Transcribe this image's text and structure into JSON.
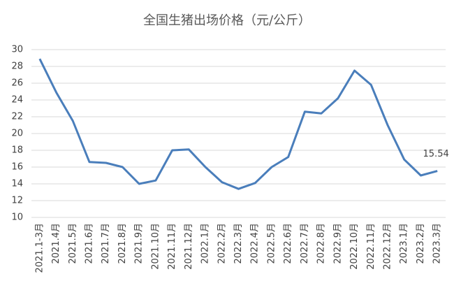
{
  "chart_data": {
    "type": "line",
    "title": "全国生猪出场价格（元/公斤）",
    "categories": [
      "2021.1-3月",
      "2021.4月",
      "2021.5月",
      "2021.6月",
      "2021.7月",
      "2021.8月",
      "2021.9月",
      "2021.10月",
      "2021.11月",
      "2021.12月",
      "2022.1月",
      "2022.2月",
      "2022.3月",
      "2022.4月",
      "2022.5月",
      "2022.6月",
      "2022.7月",
      "2022.8月",
      "2022.9月",
      "2022.10月",
      "2022.11月",
      "2022.12月",
      "2023.1月",
      "2023.2月",
      "2023.3月"
    ],
    "values": [
      28.9,
      24.9,
      21.5,
      16.6,
      16.5,
      16.0,
      14.0,
      14.4,
      18.0,
      18.1,
      16.0,
      14.2,
      13.4,
      14.1,
      16.0,
      17.2,
      22.6,
      22.4,
      24.2,
      27.5,
      25.8,
      21.0,
      16.9,
      15.0,
      15.54
    ],
    "color": "#4a7ebb",
    "ylim": [
      10,
      30
    ],
    "yticks": [
      10,
      12,
      14,
      16,
      18,
      20,
      22,
      24,
      26,
      28,
      30
    ],
    "grid": true
  }
}
